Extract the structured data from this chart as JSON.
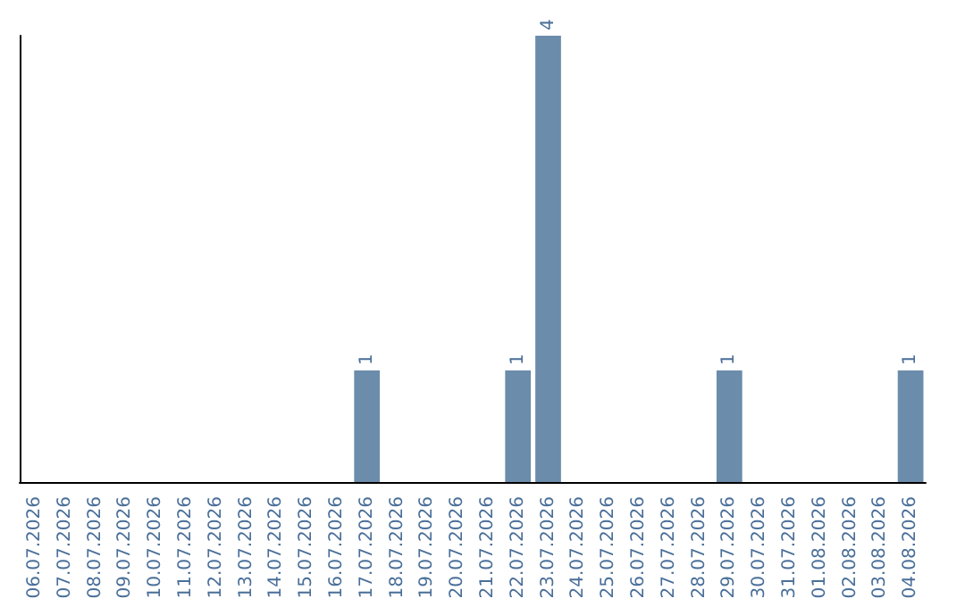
{
  "chart_data": {
    "type": "bar",
    "categories": [
      "06.07.2026",
      "07.07.2026",
      "08.07.2026",
      "09.07.2026",
      "10.07.2026",
      "11.07.2026",
      "12.07.2026",
      "13.07.2026",
      "14.07.2026",
      "15.07.2026",
      "16.07.2026",
      "17.07.2026",
      "18.07.2026",
      "19.07.2026",
      "20.07.2026",
      "21.07.2026",
      "22.07.2026",
      "23.07.2026",
      "24.07.2026",
      "25.07.2026",
      "26.07.2026",
      "27.07.2026",
      "28.07.2026",
      "29.07.2026",
      "30.07.2026",
      "31.07.2026",
      "01.08.2026",
      "02.08.2026",
      "03.08.2026",
      "04.08.2026"
    ],
    "values": [
      0,
      0,
      0,
      0,
      0,
      0,
      0,
      0,
      0,
      0,
      0,
      1,
      0,
      0,
      0,
      0,
      1,
      4,
      0,
      0,
      0,
      0,
      0,
      1,
      0,
      0,
      0,
      0,
      0,
      1
    ],
    "value_labels": [
      null,
      null,
      null,
      null,
      null,
      null,
      null,
      null,
      null,
      null,
      null,
      "1",
      null,
      null,
      null,
      null,
      "1",
      "4",
      null,
      null,
      null,
      null,
      null,
      "1",
      null,
      null,
      null,
      null,
      null,
      "1"
    ],
    "color": "#6b8cab",
    "tick_labels": "x",
    "grid": false
  }
}
